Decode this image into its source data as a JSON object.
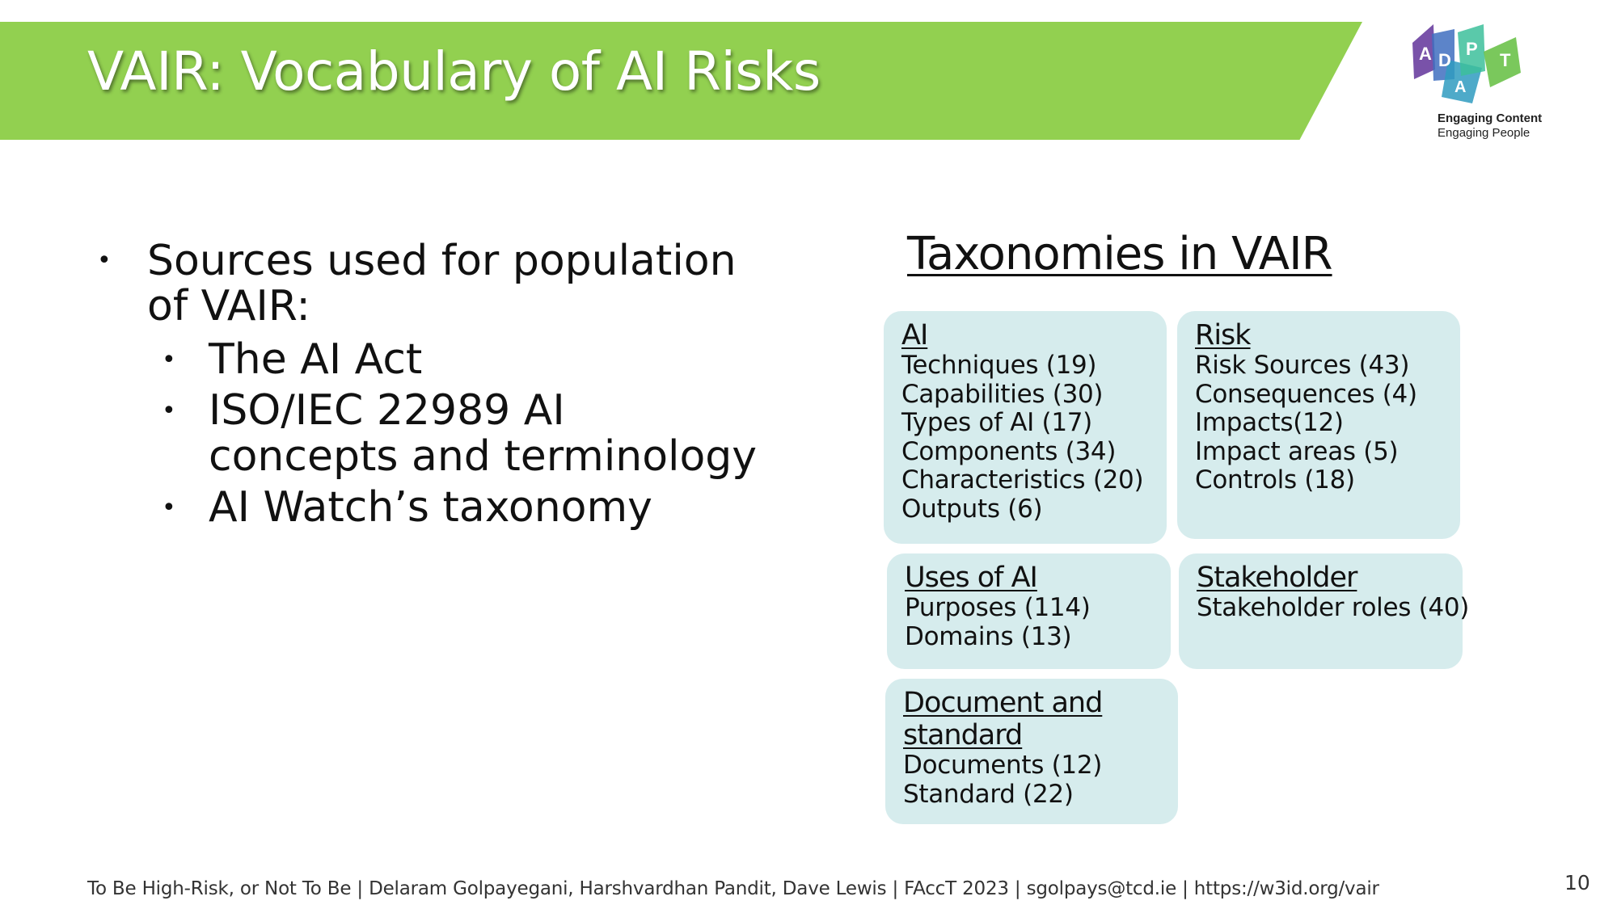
{
  "slide": {
    "title": "VAIR: Vocabulary of AI Risks",
    "logo": {
      "letters": [
        "A",
        "D",
        "A",
        "P",
        "T"
      ],
      "tagline_line1": "Engaging Content",
      "tagline_line2": "Engaging People",
      "colors": [
        "#6a3fa0",
        "#3f6fbf",
        "#2f9bbf",
        "#3dbf9b",
        "#6cc24a"
      ]
    },
    "accent_color": "#92d050",
    "box_color": "#d6eced",
    "bullets": {
      "main": "Sources used for population of VAIR:",
      "sub": [
        "The AI Act",
        "ISO/IEC 22989  AI concepts and terminology",
        "AI Watch’s taxonomy"
      ]
    },
    "taxonomies": {
      "title": "Taxonomies in VAIR",
      "ai": {
        "heading": "AI",
        "items": [
          "Techniques (19)",
          "Capabilities (30)",
          "Types of AI (17)",
          "Components (34)",
          "Characteristics (20)",
          "Outputs (6)"
        ]
      },
      "risk": {
        "heading": "Risk",
        "items": [
          "Risk Sources (43)",
          "Consequences (4)",
          "Impacts(12)",
          "Impact areas (5)",
          "Controls (18)"
        ]
      },
      "uses": {
        "heading": "Uses of AI",
        "items": [
          "Purposes (114)",
          "Domains (13)"
        ]
      },
      "stakeholder": {
        "heading": "Stakeholder",
        "items": [
          "Stakeholder roles (40)"
        ]
      },
      "document": {
        "heading_line1": "Document and",
        "heading_line2": "standard",
        "items": [
          "Documents (12)",
          "Standard (22)"
        ]
      }
    },
    "footer": "To Be High-Risk, or Not To Be | Delaram Golpayegani, Harshvardhan Pandit, Dave Lewis | FAccT 2023 | sgolpays@tcd.ie | https://w3id.org/vair",
    "page_number": "10"
  }
}
